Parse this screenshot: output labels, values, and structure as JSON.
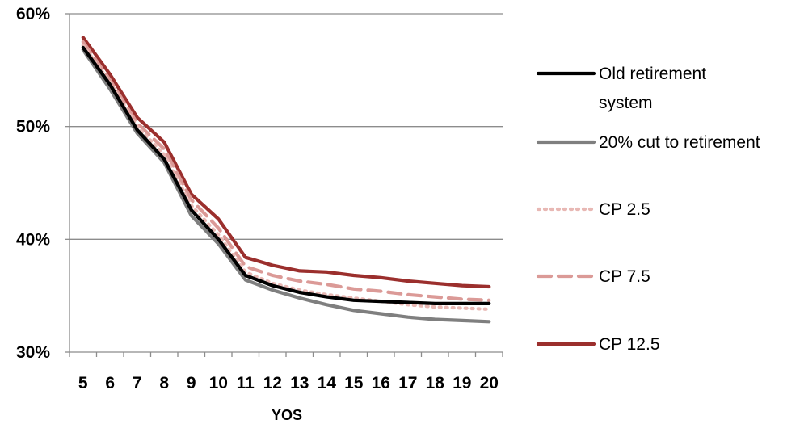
{
  "chart_data": {
    "type": "line",
    "xlabel": "YOS",
    "ylabel": "",
    "x": [
      5,
      6,
      7,
      8,
      9,
      10,
      11,
      12,
      13,
      14,
      15,
      16,
      17,
      18,
      19,
      20
    ],
    "ylim": [
      30,
      60
    ],
    "yticks": [
      "30%",
      "40%",
      "50%",
      "60%"
    ],
    "grid": true,
    "legend_position": "right",
    "series": [
      {
        "name": "Old retirement system",
        "legend_lines": [
          "Old retirement",
          "system"
        ],
        "color": "#000000",
        "style": "solid",
        "values": [
          57.0,
          53.7,
          49.7,
          47.1,
          42.6,
          40.0,
          36.8,
          35.9,
          35.3,
          34.9,
          34.6,
          34.5,
          34.4,
          34.3,
          34.3,
          34.3
        ]
      },
      {
        "name": "20% cut to retirement",
        "legend_lines": [
          "20% cut to retirement"
        ],
        "color": "#7f7f7f",
        "style": "solid",
        "values": [
          56.8,
          53.3,
          49.4,
          46.8,
          42.1,
          39.6,
          36.4,
          35.5,
          34.8,
          34.2,
          33.7,
          33.4,
          33.1,
          32.9,
          32.8,
          32.7
        ]
      },
      {
        "name": "CP 2.5",
        "legend_lines": [
          "CP 2.5"
        ],
        "color": "#e8b8b4",
        "style": "dotted",
        "values": [
          57.2,
          53.9,
          50.0,
          47.5,
          43.0,
          40.4,
          37.1,
          36.1,
          35.5,
          35.1,
          34.8,
          34.5,
          34.2,
          34.0,
          33.9,
          33.8
        ]
      },
      {
        "name": "CP 7.5",
        "legend_lines": [
          "CP 7.5"
        ],
        "color": "#db9a97",
        "style": "dashed",
        "values": [
          57.5,
          54.1,
          50.3,
          48.0,
          43.5,
          41.0,
          37.6,
          36.8,
          36.3,
          36.0,
          35.6,
          35.4,
          35.1,
          34.9,
          34.7,
          34.6
        ]
      },
      {
        "name": "CP 12.5",
        "legend_lines": [
          "CP 12.5"
        ],
        "color": "#9b2f2d",
        "style": "solid",
        "values": [
          57.9,
          54.6,
          50.8,
          48.6,
          44.0,
          41.8,
          38.4,
          37.7,
          37.2,
          37.1,
          36.8,
          36.6,
          36.3,
          36.1,
          35.9,
          35.8
        ]
      }
    ]
  }
}
